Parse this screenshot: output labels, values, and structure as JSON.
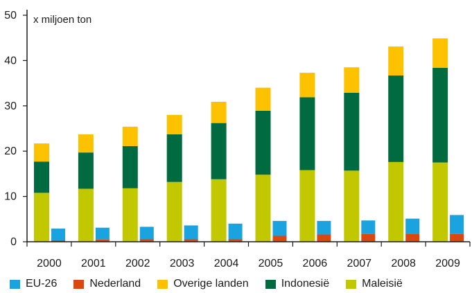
{
  "chart_data": {
    "type": "bar",
    "stacked": true,
    "unit_label": "x miljoen ton",
    "ylim": [
      0,
      50
    ],
    "yticks": [
      0,
      10,
      20,
      30,
      40,
      50
    ],
    "categories": [
      "2000",
      "2001",
      "2002",
      "2003",
      "2004",
      "2005",
      "2006",
      "2007",
      "2008",
      "2009"
    ],
    "stacks": [
      {
        "stack": "producenten",
        "series": [
          {
            "name": "Maleisië",
            "color": "#c2c800",
            "values": [
              10.8,
              11.7,
              11.8,
              13.2,
              13.8,
              14.8,
              15.8,
              15.7,
              17.6,
              17.5
            ]
          },
          {
            "name": "Indonesië",
            "color": "#006a40",
            "values": [
              6.9,
              8.0,
              9.3,
              10.5,
              12.4,
              14.1,
              16.1,
              17.2,
              19.1,
              20.9
            ]
          },
          {
            "name": "Overige landen",
            "color": "#fcc200",
            "values": [
              4.0,
              4.0,
              4.3,
              4.3,
              4.7,
              5.1,
              5.4,
              5.6,
              6.4,
              6.5
            ]
          }
        ]
      },
      {
        "stack": "importeurs",
        "series": [
          {
            "name": "Nederland",
            "color": "#d9480f",
            "values": [
              0.3,
              0.5,
              0.6,
              0.6,
              0.6,
              1.3,
              1.6,
              1.7,
              1.8,
              1.7
            ]
          },
          {
            "name": "EU-26",
            "color": "#1aa3df",
            "values": [
              2.6,
              2.6,
              2.7,
              3.0,
              3.4,
              3.3,
              3.0,
              3.0,
              3.3,
              4.2
            ]
          }
        ]
      }
    ],
    "legend": {
      "placement": "bottom",
      "entries": [
        {
          "name": "EU-26",
          "color": "#1aa3df"
        },
        {
          "name": "Nederland",
          "color": "#d9480f"
        },
        {
          "name": "Overige landen",
          "color": "#fcc200"
        },
        {
          "name": "Indonesië",
          "color": "#006a40"
        },
        {
          "name": "Maleisië",
          "color": "#c2c800"
        }
      ]
    },
    "grid": false
  }
}
